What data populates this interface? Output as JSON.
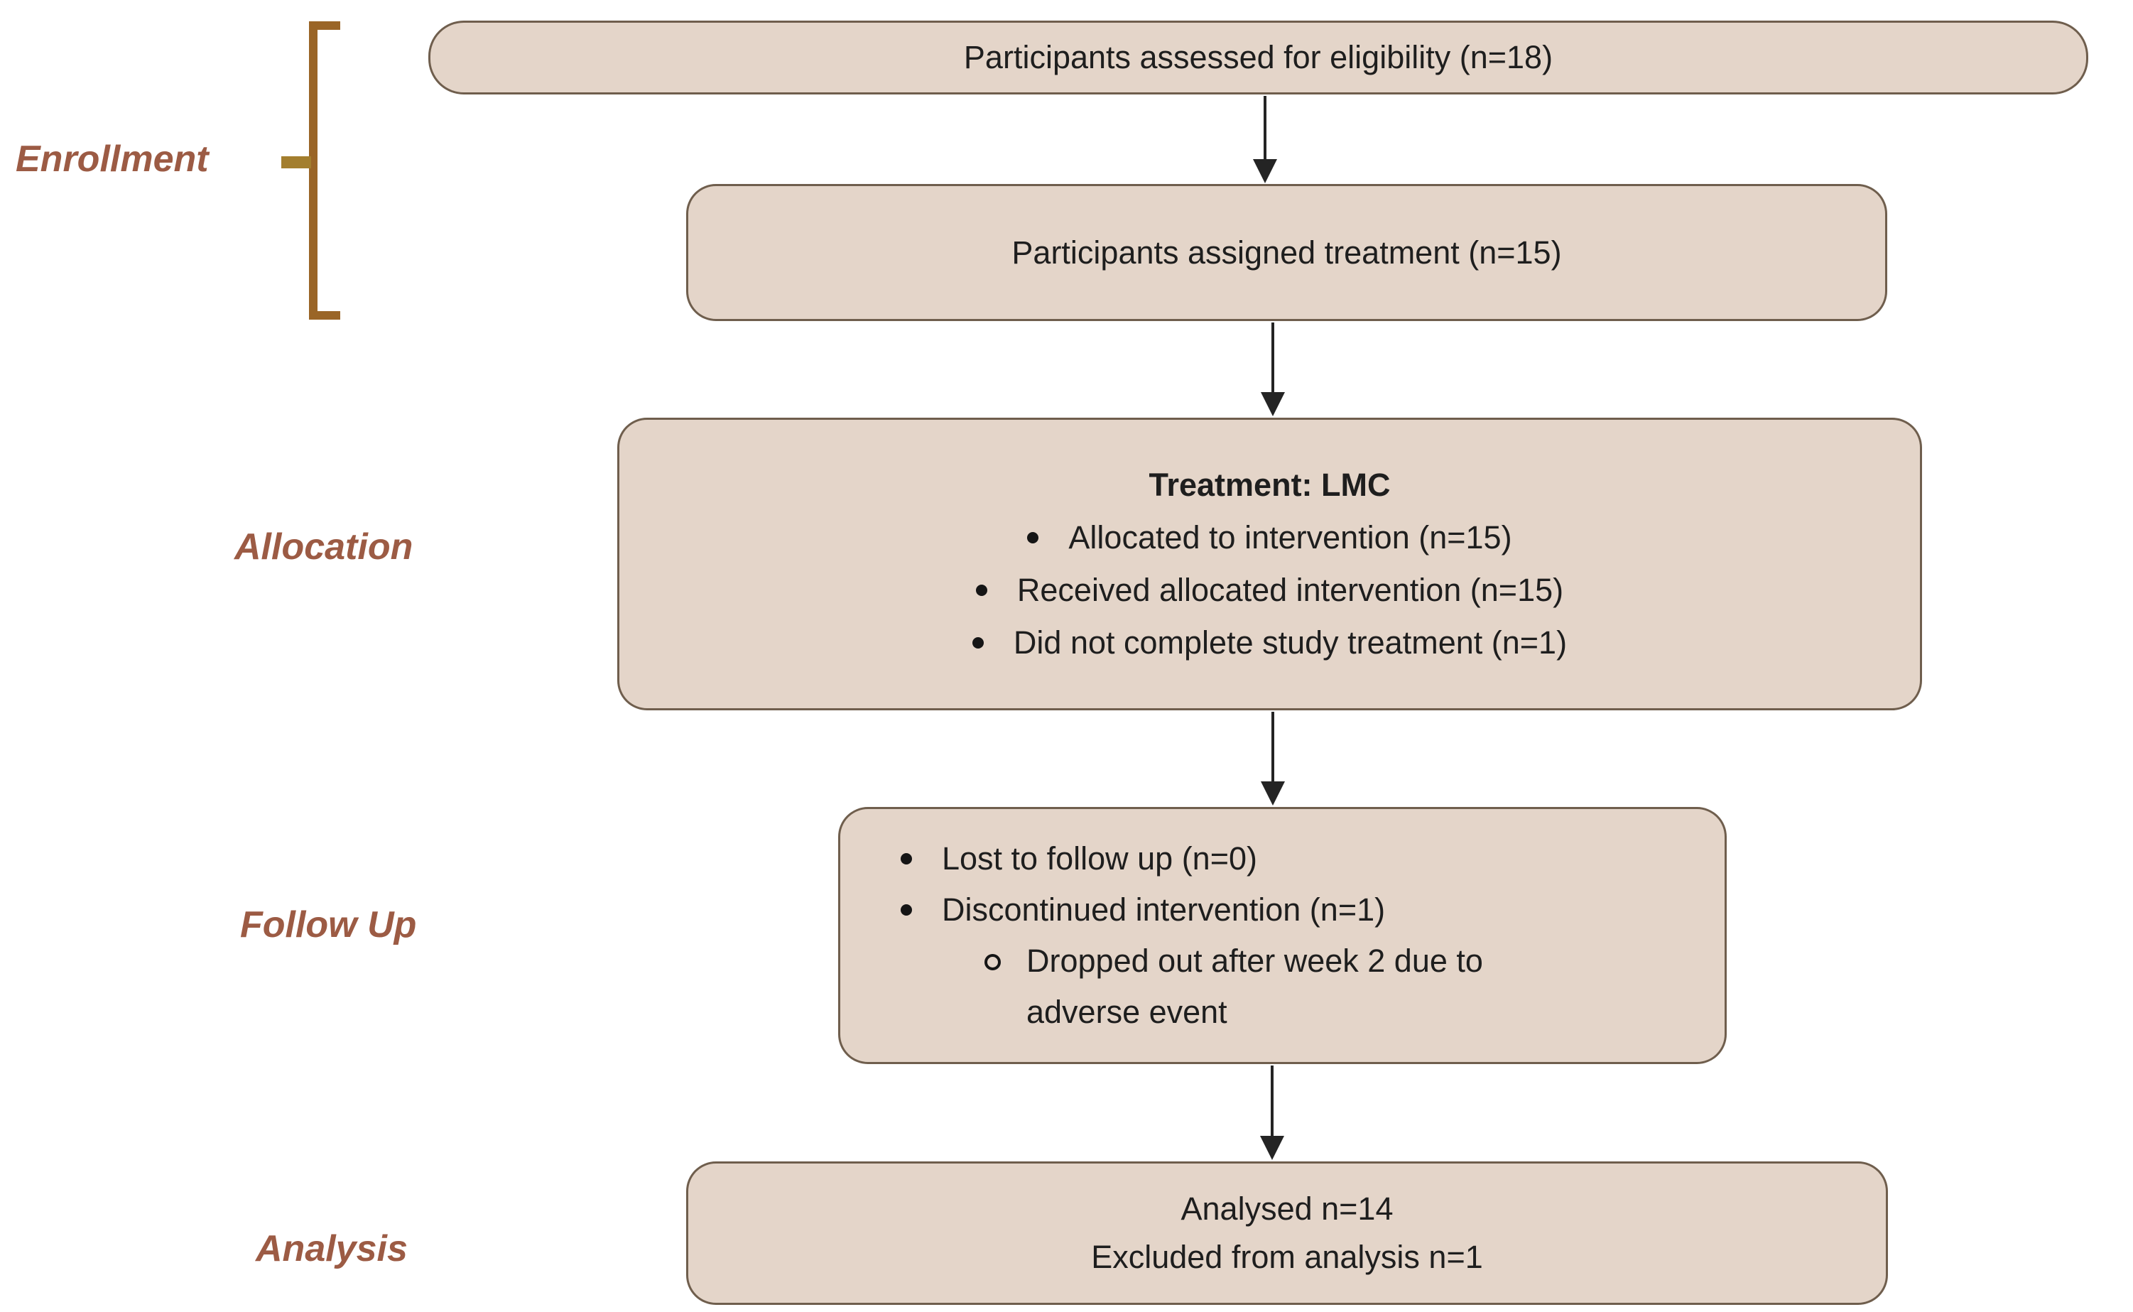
{
  "diagram": {
    "type": "consort-flow",
    "stage_labels": {
      "enrollment": "Enrollment",
      "allocation": "Allocation",
      "follow_up": "Follow Up",
      "analysis": "Analysis"
    },
    "boxes": {
      "eligibility": {
        "text": "Participants assessed for eligibility (n=18)"
      },
      "assigned": {
        "text": "Participants assigned treatment (n=15)"
      },
      "allocation": {
        "heading": "Treatment: LMC",
        "bullets": [
          "Allocated to intervention (n=15)",
          "Received allocated intervention (n=15)",
          "Did not complete study treatment (n=1)"
        ]
      },
      "follow_up": {
        "bullets": [
          "Lost to follow up (n=0)",
          "Discontinued intervention (n=1)"
        ],
        "sub_bullets": [
          "Dropped out after week 2 due to adverse event"
        ]
      },
      "analysis": {
        "lines": [
          "Analysed n=14",
          "Excluded from analysis n=1"
        ]
      }
    },
    "counts": {
      "assessed_for_eligibility": 18,
      "assigned_treatment": 15,
      "allocated_to_intervention": 15,
      "received_allocated_intervention": 15,
      "did_not_complete_study_treatment": 1,
      "lost_to_follow_up": 0,
      "discontinued_intervention": 1,
      "analysed": 14,
      "excluded_from_analysis": 1
    },
    "bullet_styles": {
      "level1": "disc",
      "level2": "circle"
    },
    "colors": {
      "background": "#ffffff",
      "box_fill": "#e4d5c9",
      "box_border": "#6f5e4d",
      "box_text": "#1e1e1e",
      "stage_label": "#9c5b44",
      "bracket": "#9a6527",
      "bracket_tick": "#a37e2e",
      "arrow": "#242424"
    }
  }
}
